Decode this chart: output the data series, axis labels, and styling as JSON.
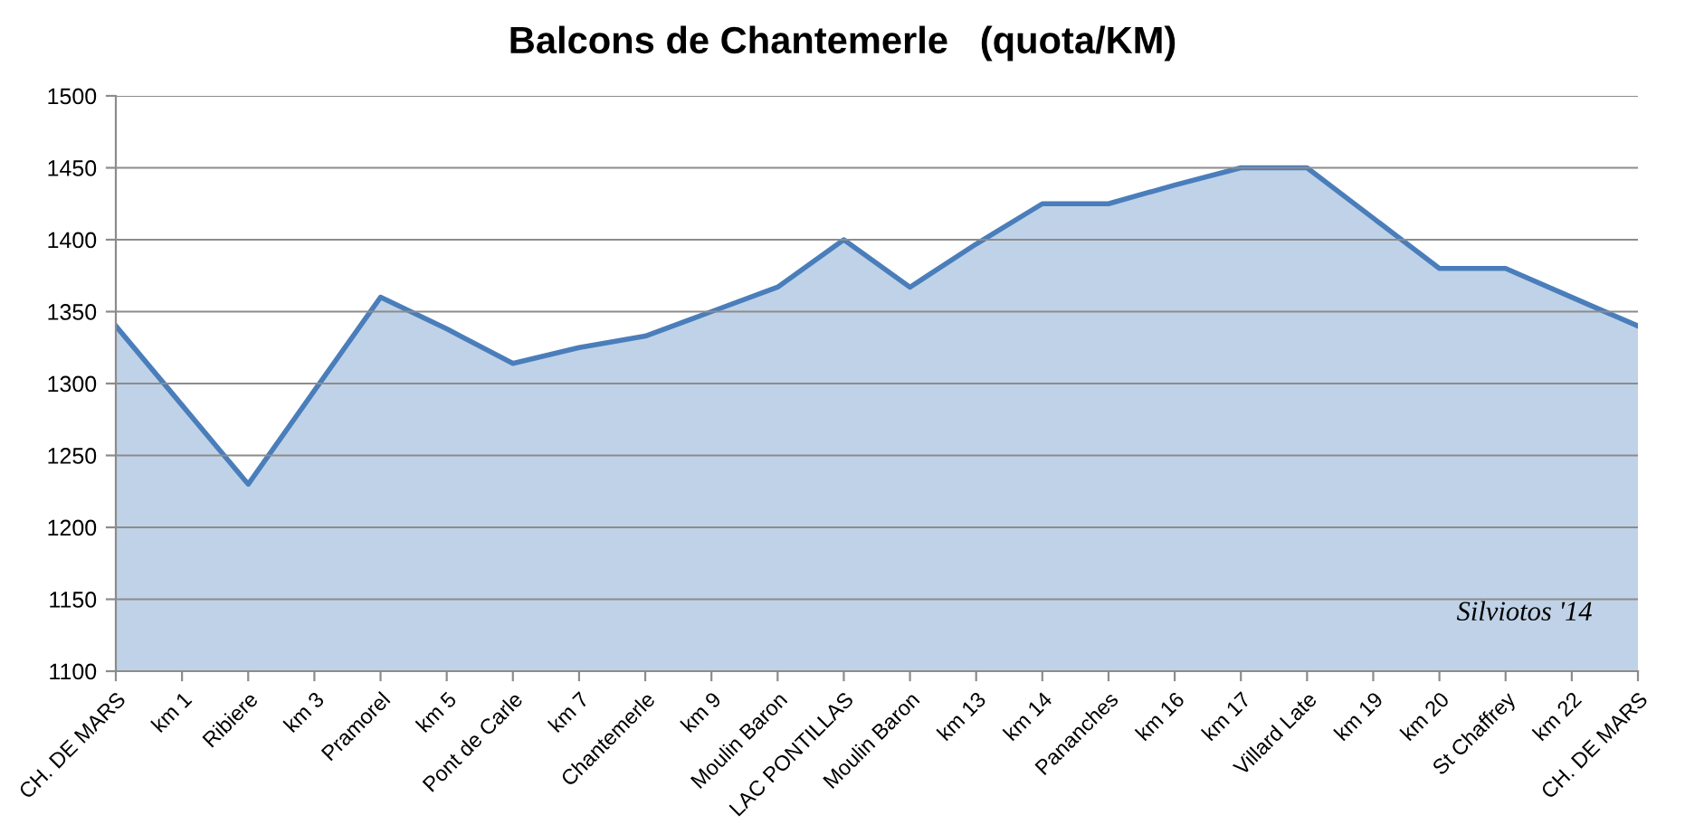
{
  "chart_data": {
    "type": "area",
    "title": "Balcons de Chantemerle   (quota/KM)",
    "categories": [
      "CH. DE MARS",
      "km 1",
      "Ribiere",
      "km 3",
      "Pramorel",
      "km 5",
      "Pont de Carle",
      "km 7",
      "Chantemerle",
      "km 9",
      "Moulin Baron",
      "LAC PONTILLAS",
      "Moulin Baron",
      "km 13",
      "km 14",
      "Pananches",
      "km 16",
      "km 17",
      "Villard Late",
      "km 19",
      "km 20",
      "St Chaffrey",
      "km 22",
      "CH. DE MARS"
    ],
    "series": [
      {
        "color": "#4a7ebb",
        "values": [
          1340,
          1285,
          1230,
          1295,
          1360,
          1338,
          1314,
          1325,
          1333,
          1350,
          1367,
          1400,
          1367,
          1397,
          1425,
          1425,
          1438,
          1450,
          1450,
          1415,
          1380,
          1380,
          1360,
          1340
        ]
      }
    ],
    "ylim": [
      1100,
      1500
    ],
    "yticks": [
      1100,
      1150,
      1200,
      1250,
      1300,
      1350,
      1400,
      1450,
      1500
    ],
    "grid": "y",
    "annotations": [
      "Silviotos '14"
    ]
  }
}
